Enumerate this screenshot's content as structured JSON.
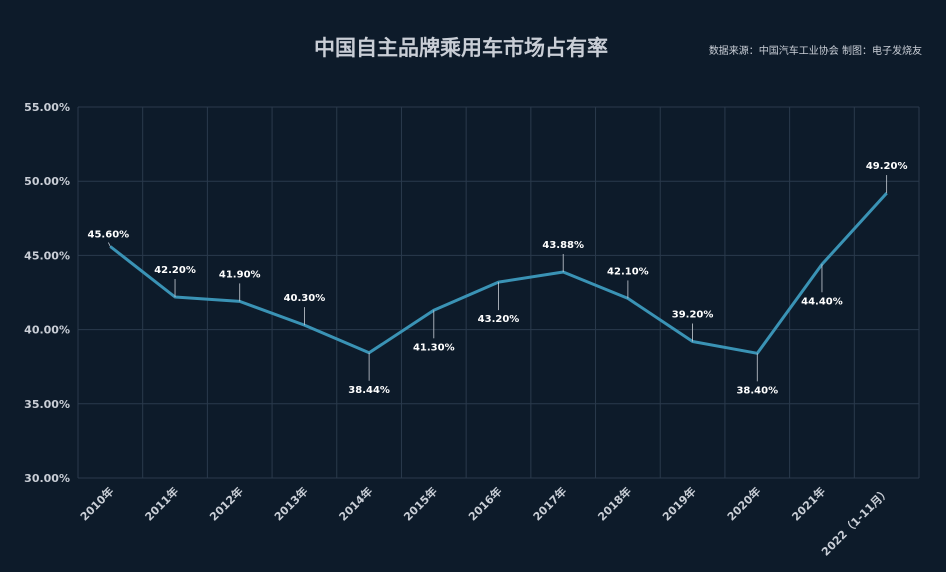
{
  "chart_data": {
    "type": "line",
    "title": "中国自主品牌乘用车市场占有率",
    "source": "数据来源：中国汽车工业协会  制图：电子发烧友",
    "categories": [
      "2010年",
      "2011年",
      "2012年",
      "2013年",
      "2014年",
      "2015年",
      "2016年",
      "2017年",
      "2018年",
      "2019年",
      "2020年",
      "2021年",
      "2022（1-11月）"
    ],
    "values": [
      45.6,
      42.2,
      41.9,
      40.3,
      38.44,
      41.3,
      43.2,
      43.88,
      42.1,
      39.2,
      38.4,
      44.4,
      49.2
    ],
    "data_labels": [
      "45.60%",
      "42.20%",
      "41.90%",
      "40.30%",
      "38.44%",
      "41.30%",
      "43.20%",
      "43.88%",
      "42.10%",
      "39.20%",
      "38.40%",
      "44.40%",
      "49.20%"
    ],
    "y_ticks": [
      "30.00%",
      "35.00%",
      "40.00%",
      "45.00%",
      "50.00%",
      "55.00%"
    ],
    "ylim": [
      30,
      55
    ],
    "grid": true,
    "line_color": "#3a93b5",
    "background": "#0d1b2a"
  }
}
